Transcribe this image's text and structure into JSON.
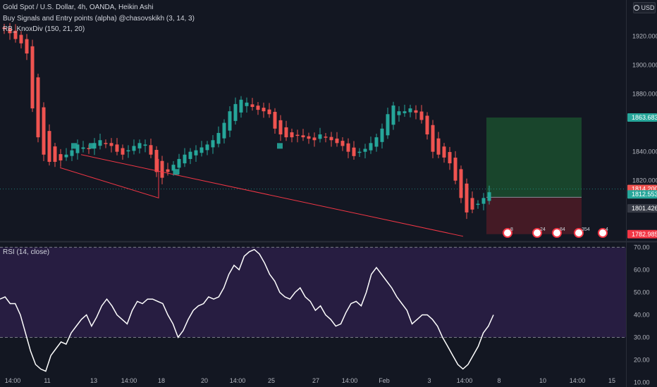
{
  "header": {
    "title": "Gold Spot / U.S. Dollar, 4h, OANDA, Heikin Ashi",
    "indicator1": "Buy Signals and Entry points (alpha) @chasovskikh (3, 14, 3)",
    "indicator2": "RB_KnoxDiv (150, 21, 20)",
    "currency": "USD"
  },
  "chart_data": [
    {
      "type": "line",
      "series": [
        {
          "values": [
            1925,
            1922,
            1918,
            1915,
            1908,
            1870,
            1850,
            1838,
            1833,
            1833,
            1834,
            1838,
            1841,
            1845,
            1843,
            1842,
            1846,
            1848,
            1846,
            1844,
            1840,
            1838,
            1841,
            1844,
            1846,
            1845,
            1838,
            1826,
            1822,
            1826,
            1831,
            1835,
            1838,
            1840,
            1841,
            1843,
            1845,
            1848,
            1853,
            1860,
            1868,
            1873,
            1876,
            1874,
            1871,
            1869,
            1868,
            1866,
            1856,
            1852,
            1850,
            1850,
            1851,
            1850,
            1849,
            1848,
            1852,
            1850,
            1848,
            1846,
            1844,
            1840,
            1837,
            1840,
            1842,
            1846,
            1850,
            1856,
            1866,
            1872,
            1868,
            1868,
            1870,
            1867,
            1862,
            1852,
            1840,
            1838,
            1836,
            1832,
            1820,
            1808,
            1798,
            1800,
            1804,
            1808,
            1812
          ],
          "color": "#ef5350"
        }
      ],
      "y_axis_ticks": [
        "1920.000",
        "1900.000",
        "1880.000",
        "1840.000",
        "1820.000"
      ],
      "ylim": [
        1778,
        1945
      ],
      "x_tick_labels": [
        "14:00",
        "11",
        "13",
        "14:00",
        "18",
        "20",
        "14:00",
        "25",
        "27",
        "14:00",
        "Feb",
        "3",
        "14:00",
        "8",
        "10",
        "14:00",
        "15"
      ],
      "price_labels": [
        {
          "value": "1863.683",
          "kind": "target",
          "color": "#26a69a"
        },
        {
          "value": "1814.200",
          "kind": "last",
          "color": "#ef5350"
        },
        {
          "value": "1812.553",
          "kind": "entry",
          "color": "#26a69a"
        },
        {
          "value": "1801.426",
          "kind": "other",
          "color": "#363a45"
        },
        {
          "value": "1782.985",
          "kind": "stop",
          "color": "#f23645"
        }
      ],
      "position_box": {
        "entry": 1808.5,
        "target": 1863.683,
        "stop": 1782.985
      },
      "divergence_lines": [
        [
          1812,
          1790
        ],
        [
          1838,
          1781.5
        ]
      ],
      "news_markers": [
        "8",
        "24",
        "84",
        "354",
        "4"
      ]
    },
    {
      "type": "line",
      "title": "RSI (14, close)",
      "ylim": [
        8,
        72
      ],
      "overbought": 70,
      "oversold": 30,
      "y_axis_ticks": [
        "70.00",
        "60.00",
        "50.00",
        "40.00",
        "30.00",
        "20.00",
        "10.00"
      ],
      "series": [
        {
          "values": [
            47,
            48,
            45,
            45,
            40,
            32,
            24,
            18,
            16,
            15,
            22,
            25,
            28,
            27,
            32,
            35,
            38,
            40,
            35,
            39,
            44,
            47,
            44,
            40,
            38,
            36,
            42,
            46,
            45,
            47,
            47,
            46,
            45,
            40,
            36,
            30,
            33,
            38,
            42,
            44,
            45,
            48,
            47,
            48,
            52,
            58,
            62,
            60,
            66,
            68,
            69,
            67,
            63,
            58,
            55,
            50,
            48,
            47,
            50,
            52,
            48,
            46,
            42,
            44,
            40,
            38,
            35,
            36,
            41,
            45,
            46,
            44,
            50,
            58,
            61,
            58,
            55,
            52,
            48,
            45,
            42,
            36,
            38,
            40,
            40,
            38,
            35,
            30,
            26,
            22,
            18,
            16,
            18,
            22,
            26,
            32,
            35,
            40
          ],
          "color": "#ffffff"
        }
      ]
    }
  ]
}
